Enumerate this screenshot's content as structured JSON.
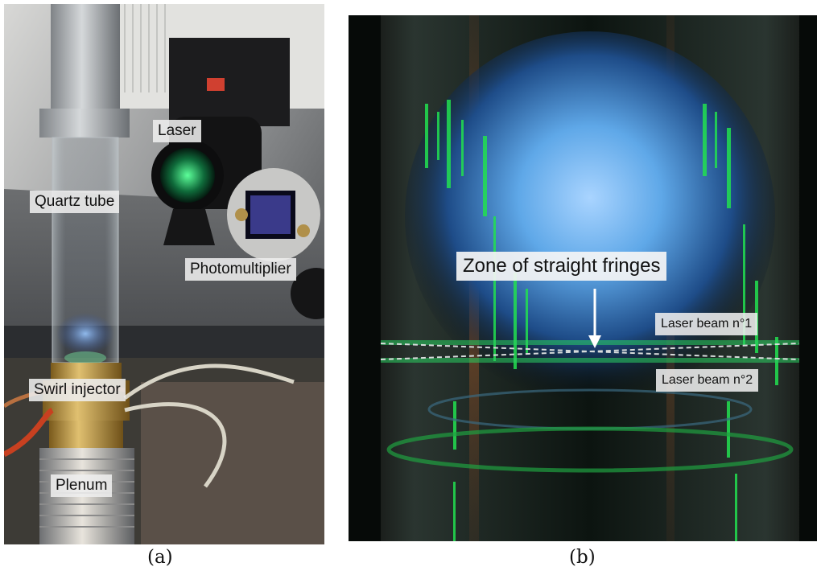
{
  "panel_a": {
    "labels": {
      "laser": "Laser",
      "quartz_tube": "Quartz tube",
      "photomultiplier": "Photomultiplier",
      "swirl_injector": "Swirl injector",
      "plenum": "Plenum"
    },
    "caption": "(a)"
  },
  "panel_b": {
    "labels": {
      "zone": "Zone of straight fringes",
      "beam1": "Laser beam n°1",
      "beam2": "Laser beam n°2"
    },
    "caption": "(b)"
  },
  "colors": {
    "flame_blue": "#5fa8e8",
    "laser_green": "#22e050",
    "brass": "#b8953e"
  }
}
